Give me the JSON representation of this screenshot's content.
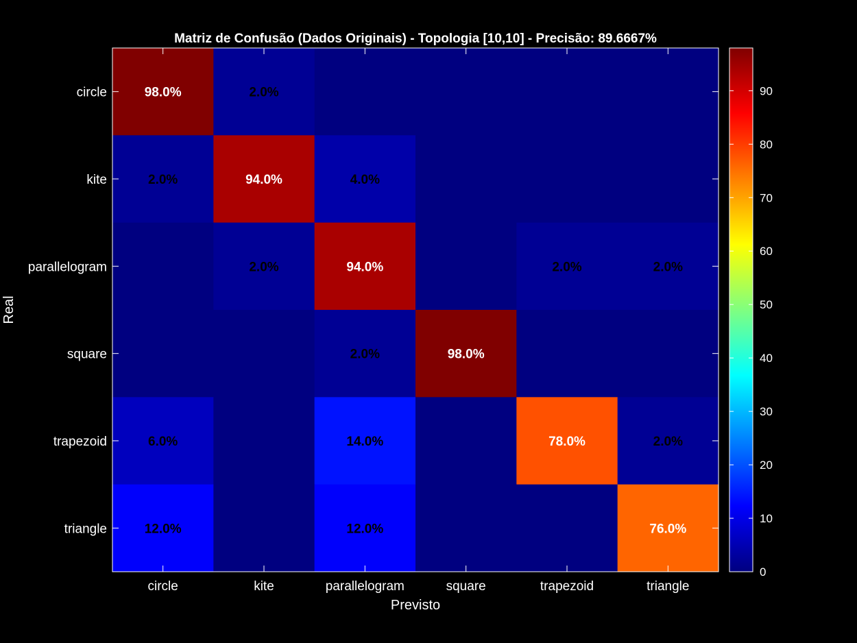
{
  "chart_data": {
    "type": "heatmap",
    "title": "Matriz de Confusão (Dados Originais) - Topologia [10,10] - Precisão: 89.6667%",
    "xlabel": "Previsto",
    "ylabel": "Real",
    "x_categories": [
      "circle",
      "kite",
      "parallelogram",
      "square",
      "trapezoid",
      "triangle"
    ],
    "y_categories": [
      "circle",
      "kite",
      "parallelogram",
      "square",
      "trapezoid",
      "triangle"
    ],
    "values": [
      [
        98,
        2,
        0,
        0,
        0,
        0
      ],
      [
        2,
        94,
        4,
        0,
        0,
        0
      ],
      [
        0,
        2,
        94,
        0,
        2,
        2
      ],
      [
        0,
        0,
        2,
        98,
        0,
        0
      ],
      [
        6,
        0,
        14,
        0,
        78,
        2
      ],
      [
        12,
        0,
        12,
        0,
        0,
        76
      ]
    ],
    "value_suffix": "%",
    "value_decimals": 1,
    "colormap": "jet",
    "clim": [
      0,
      98
    ],
    "colorbar_ticks": [
      0,
      10,
      20,
      30,
      40,
      50,
      60,
      70,
      80,
      90
    ],
    "colorbar_ticklabels": [
      "0",
      "10",
      "20",
      "30",
      "40",
      "50",
      "60",
      "70",
      "80",
      "90"
    ]
  }
}
